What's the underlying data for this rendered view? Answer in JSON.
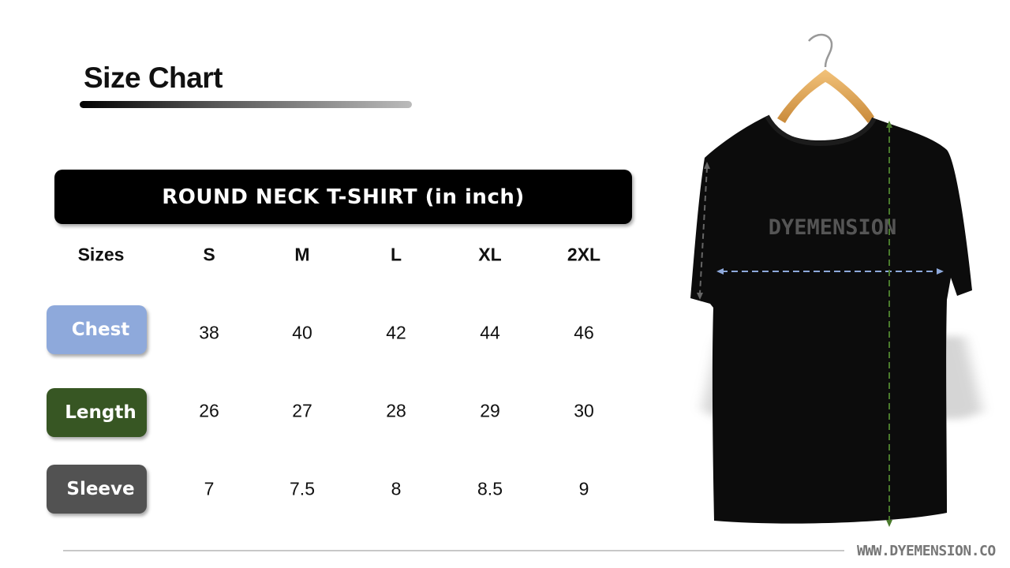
{
  "title": "Size Chart",
  "banner": "ROUND NECK T-SHIRT (in inch)",
  "table": {
    "header_label": "Sizes",
    "sizes": [
      "S",
      "M",
      "L",
      "XL",
      "2XL"
    ],
    "rows": [
      {
        "label": "Chest",
        "color": "#8EA9DB",
        "values": [
          "38",
          "40",
          "42",
          "44",
          "46"
        ]
      },
      {
        "label": "Length",
        "color": "#375623",
        "values": [
          "26",
          "27",
          "28",
          "29",
          "30"
        ]
      },
      {
        "label": "Sleeve",
        "color": "#525252",
        "values": [
          "7",
          "7.5",
          "8",
          "8.5",
          "9"
        ]
      }
    ]
  },
  "shirt": {
    "print_text": "DYEMENSION"
  },
  "website": "WWW.DYEMENSION.CO"
}
